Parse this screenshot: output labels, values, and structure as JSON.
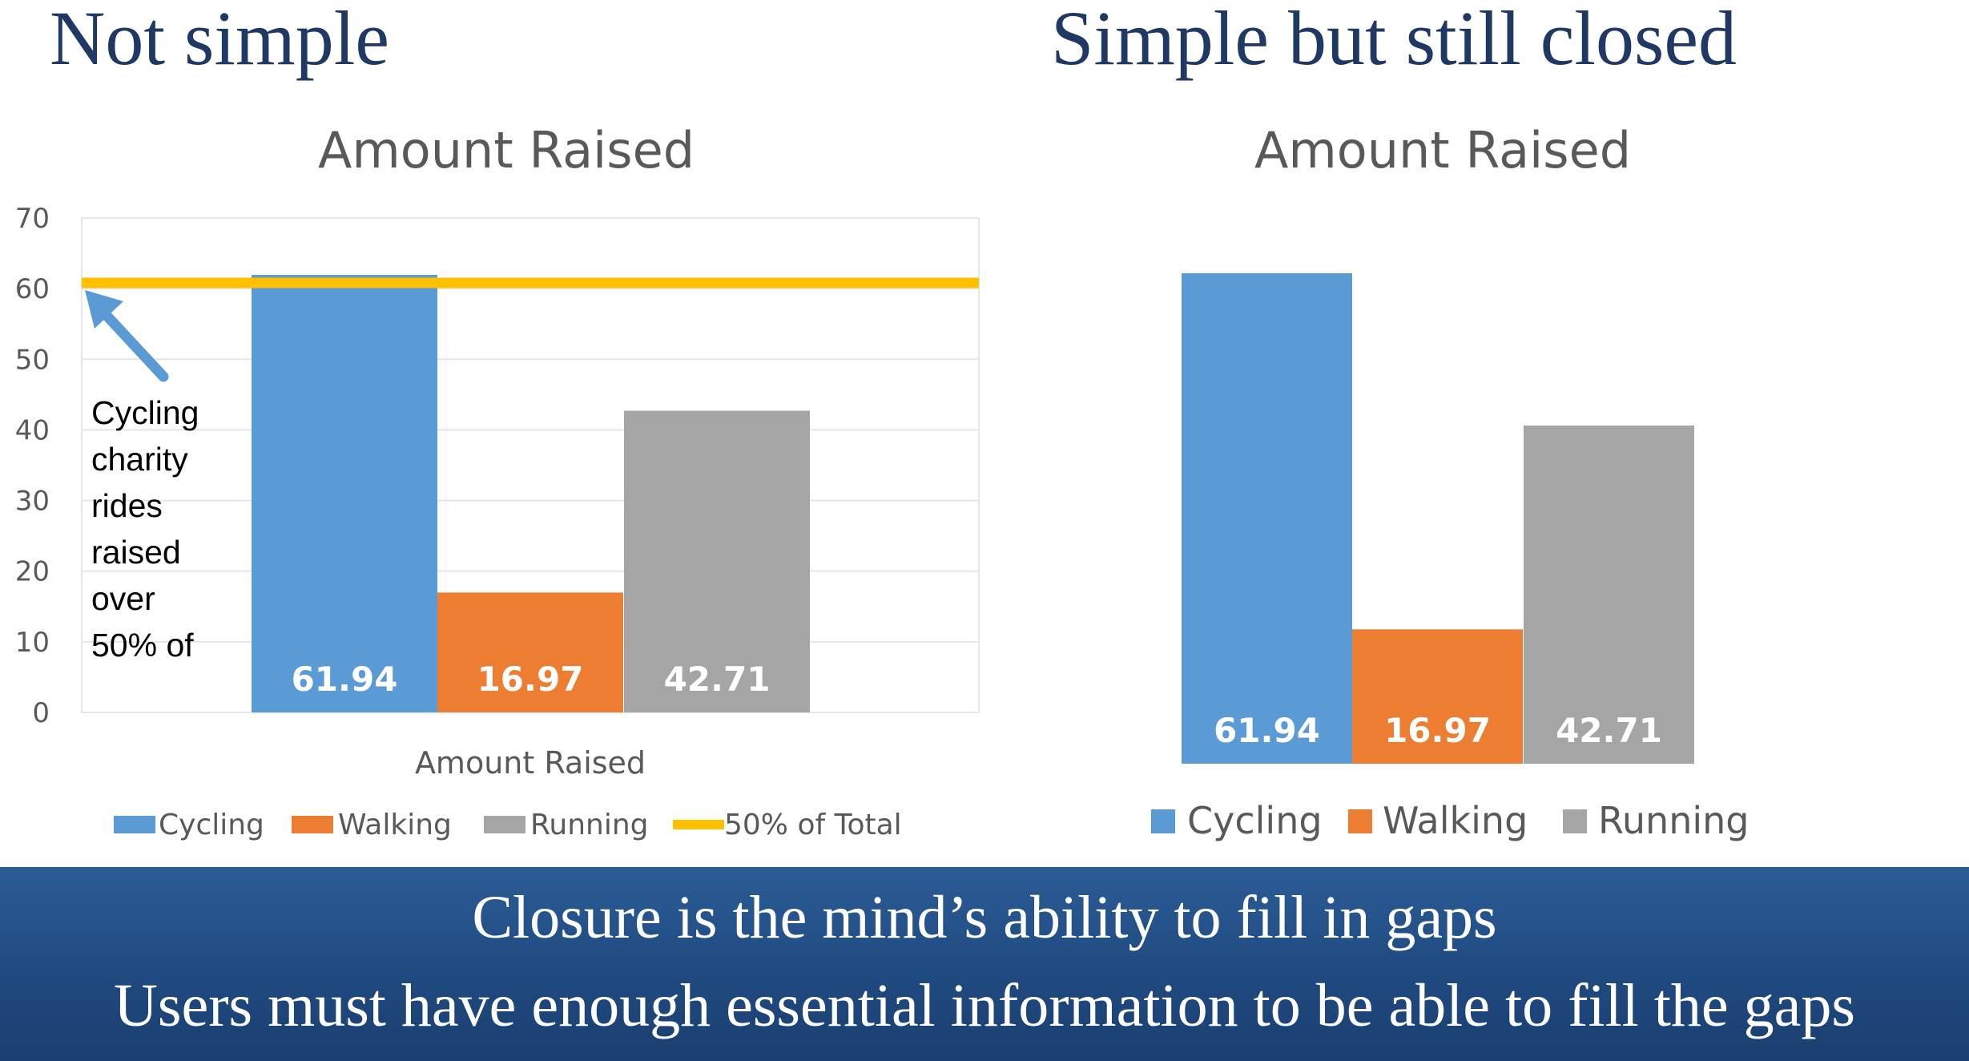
{
  "slide": {
    "left_title": "Not simple",
    "right_title": "Simple but still closed",
    "banner": [
      "Closure is the mind’s ability to fill in gaps",
      "Users must have enough essential information to be able to fill the gaps"
    ]
  },
  "chart_data": [
    {
      "type": "bar",
      "title": "Amount Raised",
      "xlabel": "Amount Raised",
      "ylabel": "",
      "ylim": [
        0,
        70
      ],
      "yticks": [
        0,
        10,
        20,
        30,
        40,
        50,
        60,
        70
      ],
      "categories": [
        "Amount Raised"
      ],
      "series": [
        {
          "name": "Cycling",
          "values": [
            61.94
          ],
          "color": "#5b9bd5",
          "label": "61.94"
        },
        {
          "name": "Walking",
          "values": [
            16.97
          ],
          "color": "#ed7d31",
          "label": "16.97"
        },
        {
          "name": "Running",
          "values": [
            42.71
          ],
          "color": "#a5a5a5",
          "label": "42.71"
        }
      ],
      "reference_line": {
        "name": "50% of Total",
        "value": 60.81,
        "color": "#ffc000"
      },
      "annotation": {
        "lines": [
          "Cycling",
          "charity",
          "rides",
          "raised",
          "over",
          "50% of"
        ],
        "arrow_color": "#5b9bd5"
      },
      "grid": true,
      "legend": "bottom"
    },
    {
      "type": "bar",
      "title": "Amount Raised",
      "xlabel": "",
      "ylabel": "",
      "categories": [
        "Amount Raised"
      ],
      "series": [
        {
          "name": "Cycling",
          "values": [
            61.94
          ],
          "color": "#5b9bd5",
          "label": "61.94"
        },
        {
          "name": "Walking",
          "values": [
            16.97
          ],
          "color": "#ed7d31",
          "label": "16.97"
        },
        {
          "name": "Running",
          "values": [
            42.71
          ],
          "color": "#a5a5a5",
          "label": "42.71"
        }
      ],
      "axes": "hidden",
      "grid": false,
      "legend": "bottom"
    }
  ]
}
